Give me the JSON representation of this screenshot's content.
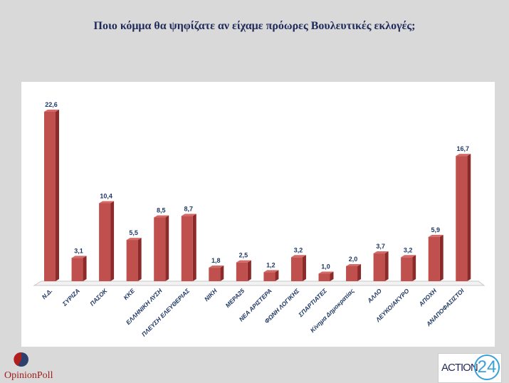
{
  "chart_data": {
    "type": "bar",
    "title": "Ποιο κόμμα θα ψηφίζατε αν είχαμε πρόωρες Βουλευτικές εκλογές;",
    "categories": [
      "Ν.Δ.",
      "ΣΥΡΙΖΑ",
      "ΠΑΣΟΚ",
      "ΚΚΕ",
      "ΕΛΛΗΝΙΚΗ ΛΥΣΗ",
      "ΠΛΕΥΣΗ ΕΛΕΥΘΕΡΙΑΣ",
      "ΝΙΚΗ",
      "ΜΕΡΑ25",
      "ΝΕΑ ΑΡΙΣΤΕΡΑ",
      "ΦΩΝΗ ΛΟΓΙΚΗΣ",
      "ΣΠΑΡΤΙΑΤΕΣ",
      "Κίνημα Δημοκρατίας",
      "ΑΛΛΟ",
      "ΛΕΥΚΟ/ΑΚΥΡΟ",
      "ΑΠΟΧΗ",
      "ΑΝΑΠΟΦΑΣΙΣΤΟΙ"
    ],
    "values": [
      22.6,
      3.1,
      10.4,
      5.5,
      8.5,
      8.7,
      1.8,
      2.5,
      1.2,
      3.2,
      1.0,
      2.0,
      3.7,
      3.2,
      5.9,
      16.7
    ],
    "data_labels": [
      "22,6",
      "3,1",
      "10,4",
      "5,5",
      "8,5",
      "8,7",
      "1,8",
      "2,5",
      "1,2",
      "3,2",
      "1,0",
      "2,0",
      "3,7",
      "3,2",
      "5,9",
      "16,7"
    ],
    "ylim": [
      0,
      22.6
    ],
    "grid": false,
    "bar_style": "3d",
    "colors": {
      "bar": "#c0504d",
      "bar_side": "#8b2a28",
      "label": "#1f3864"
    }
  },
  "logos": {
    "left": "OpinionPoll",
    "right_text": "ACTION",
    "right_number": "24"
  }
}
